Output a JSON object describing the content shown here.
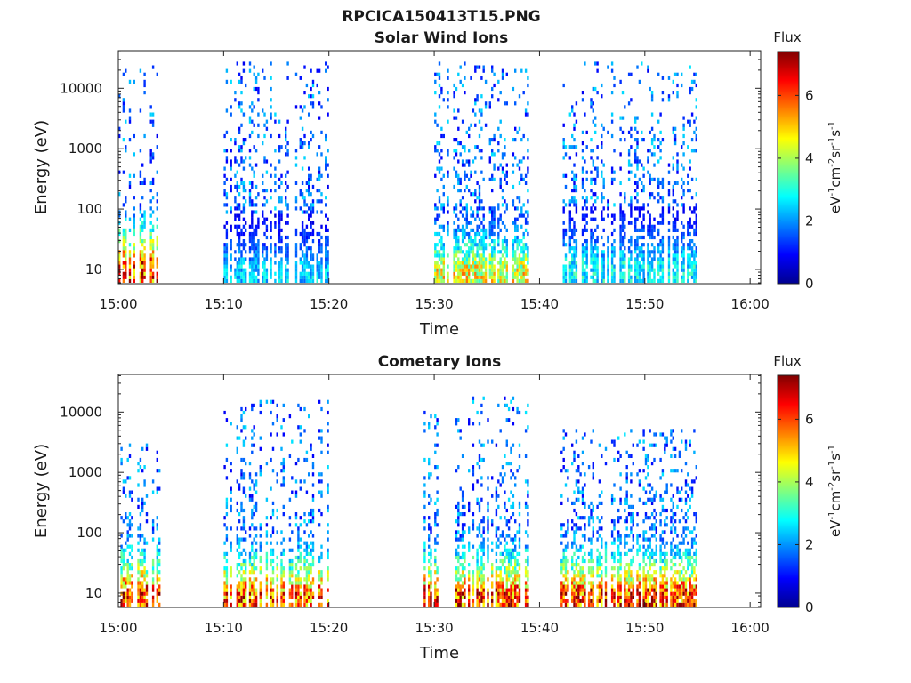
{
  "figure_title": "RPCICA150413T15.PNG",
  "chart_data": [
    {
      "type": "heatmap",
      "title": "Solar Wind Ions",
      "xlabel": "Time",
      "ylabel": "Energy (eV)",
      "x_range": [
        "15:00",
        "16:01"
      ],
      "x_ticks": [
        "15:00",
        "15:10",
        "15:20",
        "15:30",
        "15:40",
        "15:50",
        "16:00"
      ],
      "y_scale": "log",
      "y_range_eV": [
        5.8,
        42000
      ],
      "y_ticks": [
        10,
        100,
        1000,
        10000
      ],
      "y_tick_labels": [
        "10",
        "100",
        "1000",
        "10000"
      ],
      "colorbar": {
        "title": "Flux",
        "label": "eV-1cm-2sr-1s-1",
        "range": [
          0,
          7.4
        ],
        "ticks": [
          0,
          2,
          4,
          6
        ],
        "colormap": "jet"
      },
      "activity_bursts": [
        {
          "t_start": "15:00",
          "t_end": "15:04",
          "e_min": 6,
          "e_max": 25000,
          "peak_flux": 7.0,
          "peak_energy": 12
        },
        {
          "t_start": "15:10",
          "t_end": "15:20",
          "e_min": 6,
          "e_max": 25000,
          "peak_flux": 2.8,
          "peak_energy": 10
        },
        {
          "t_start": "15:30",
          "t_end": "15:39",
          "e_min": 6,
          "e_max": 25000,
          "peak_flux": 5.2,
          "peak_energy": 10
        },
        {
          "t_start": "15:42",
          "t_end": "15:55",
          "e_min": 6,
          "e_max": 25000,
          "peak_flux": 3.2,
          "peak_energy": 12
        }
      ]
    },
    {
      "type": "heatmap",
      "title": "Cometary Ions",
      "xlabel": "Time",
      "ylabel": "Energy (eV)",
      "x_range": [
        "15:00",
        "16:01"
      ],
      "x_ticks": [
        "15:00",
        "15:10",
        "15:20",
        "15:30",
        "15:40",
        "15:50",
        "16:00"
      ],
      "y_scale": "log",
      "y_range_eV": [
        5.8,
        42000
      ],
      "y_ticks": [
        10,
        100,
        1000,
        10000
      ],
      "y_tick_labels": [
        "10",
        "100",
        "1000",
        "10000"
      ],
      "colorbar": {
        "title": "Flux",
        "label": "eV-1cm-2sr-1s-1",
        "range": [
          0,
          7.4
        ],
        "ticks": [
          0,
          2,
          4,
          6
        ],
        "colormap": "jet"
      },
      "activity_bursts": [
        {
          "t_start": "15:00",
          "t_end": "15:04",
          "e_min": 6,
          "e_max": 3000,
          "peak_flux": 7.2,
          "peak_energy": 10
        },
        {
          "t_start": "15:10",
          "t_end": "15:20",
          "e_min": 6,
          "e_max": 15000,
          "peak_flux": 6.8,
          "peak_energy": 10
        },
        {
          "t_start": "15:29",
          "t_end": "15:39",
          "e_min": 6,
          "e_max": 18000,
          "peak_flux": 7.0,
          "peak_energy": 10
        },
        {
          "t_start": "15:42",
          "t_end": "15:55",
          "e_min": 6,
          "e_max": 5000,
          "peak_flux": 7.0,
          "peak_energy": 10
        }
      ]
    }
  ]
}
